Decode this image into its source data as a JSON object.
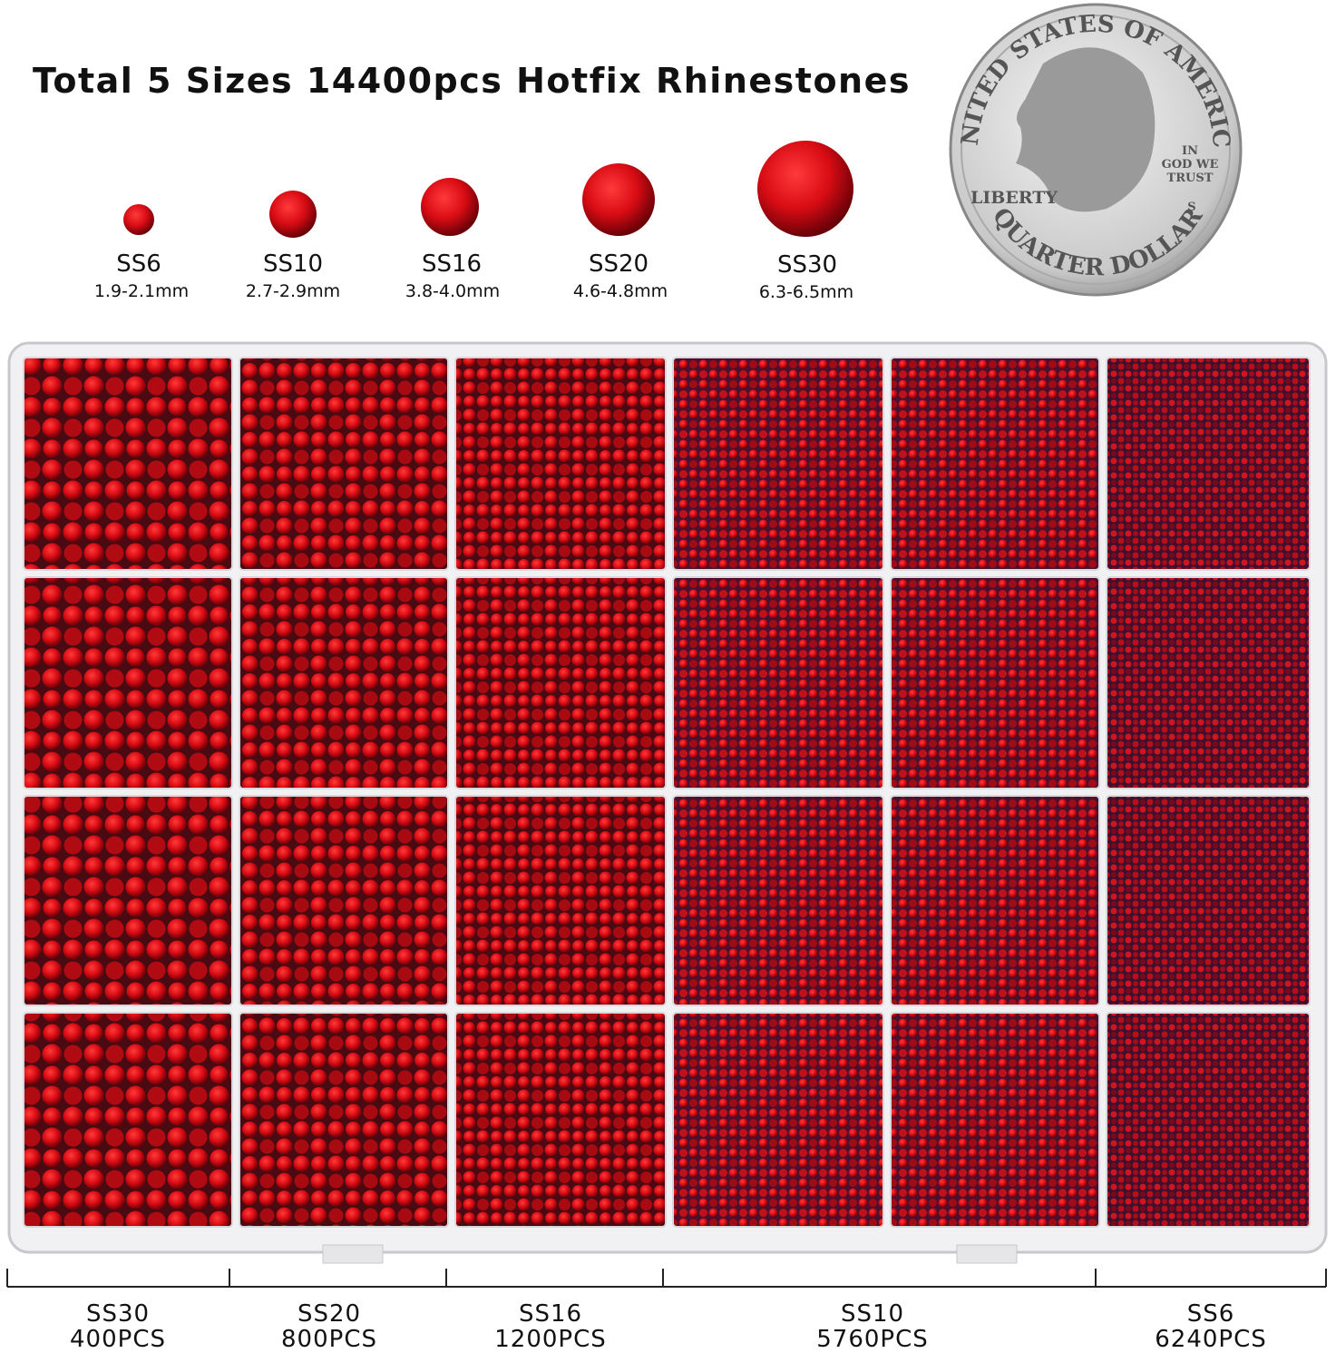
{
  "title": "Total 5 Sizes 14400pcs Hotfix Rhinestones",
  "sizes": [
    {
      "name": "SS6",
      "range": "1.9-2.1mm"
    },
    {
      "name": "SS10",
      "range": "2.7-2.9mm"
    },
    {
      "name": "SS16",
      "range": "3.8-4.0mm"
    },
    {
      "name": "SS20",
      "range": "4.6-4.8mm"
    },
    {
      "name": "SS30",
      "range": "6.3-6.5mm"
    }
  ],
  "coin": {
    "top": "UNITED STATES OF AMERICA",
    "liberty": "LIBERTY",
    "motto": [
      "IN",
      "GOD WE",
      "TRUST"
    ],
    "mint": "S",
    "bottom": "QUARTER DOLLAR"
  },
  "counts": [
    {
      "name": "SS30",
      "count": "400PCS"
    },
    {
      "name": "SS20",
      "count": "800PCS"
    },
    {
      "name": "SS16",
      "count": "1200PCS"
    },
    {
      "name": "SS10",
      "count": "5760PCS"
    },
    {
      "name": "SS6",
      "count": "6240PCS"
    }
  ]
}
